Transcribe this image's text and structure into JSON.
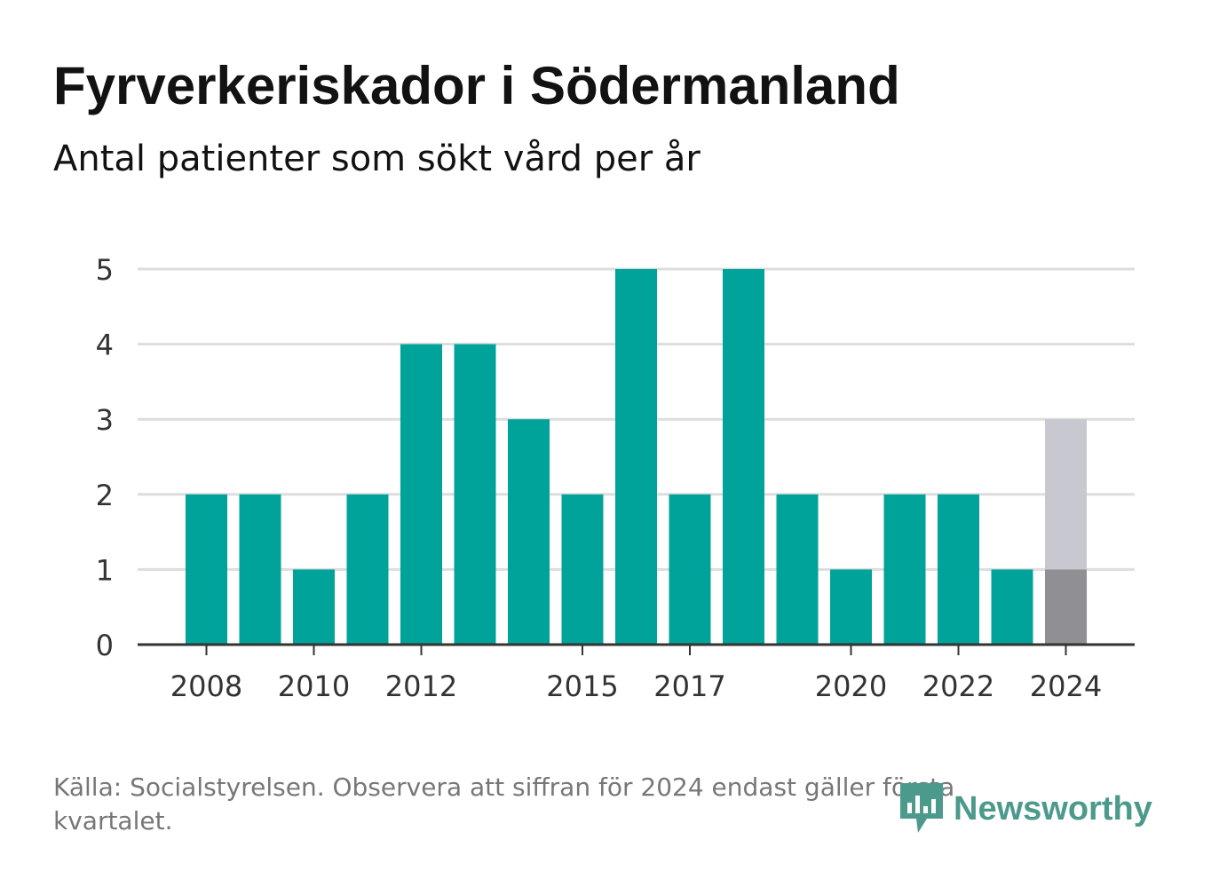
{
  "title": "Fyrverkeriskador i Södermanland",
  "subtitle": "Antal patienter som sökt vård per år",
  "source": "Källa: Socialstyrelsen. Observera att siffran för 2024 endast gäller första kvartalet.",
  "brand": "Newsworthy",
  "colors": {
    "bar": "#00a39a",
    "partial_dark": "#8f8f94",
    "partial_light": "#c8c8d0",
    "grid": "#dddddd",
    "axis": "#333333",
    "tick_text": "#333333",
    "brand": "#4c9a8c"
  },
  "chart_data": {
    "type": "bar",
    "categories": [
      "2008",
      "2009",
      "2010",
      "2011",
      "2012",
      "2013",
      "2014",
      "2015",
      "2016",
      "2017",
      "2018",
      "2019",
      "2020",
      "2021",
      "2022",
      "2023",
      "2024"
    ],
    "values": [
      2,
      2,
      1,
      2,
      4,
      4,
      3,
      2,
      5,
      2,
      5,
      2,
      1,
      2,
      2,
      1,
      1
    ],
    "estimated_total_2024": 3,
    "x_tick_labels": [
      "2008",
      "2010",
      "2012",
      "2015",
      "2017",
      "2020",
      "2022",
      "2024"
    ],
    "y_ticks": [
      0,
      1,
      2,
      3,
      4,
      5
    ],
    "ylim": [
      0,
      5
    ],
    "grid": true,
    "legend": "none"
  }
}
